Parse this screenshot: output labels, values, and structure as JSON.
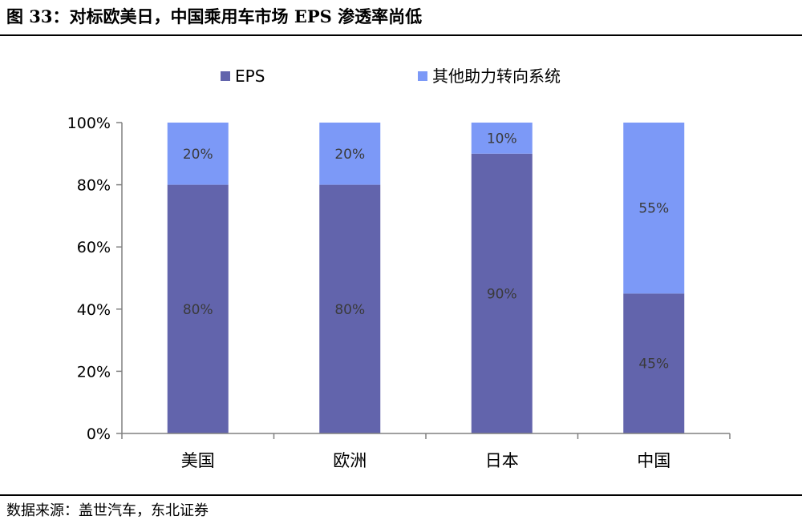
{
  "figure": {
    "title": "图 33：对标欧美日，中国乘用车市场 EPS 渗透率尚低",
    "source": "数据来源：盖世汽车，东北证券"
  },
  "chart_data": {
    "type": "bar",
    "stacked": true,
    "categories": [
      "美国",
      "欧洲",
      "日本",
      "中国"
    ],
    "series": [
      {
        "name": "EPS",
        "values": [
          80,
          80,
          90,
          45
        ],
        "labels": [
          "80%",
          "80%",
          "90%",
          "45%"
        ],
        "color": "#6264ac"
      },
      {
        "name": "其他助力转向系统",
        "values": [
          20,
          20,
          10,
          55
        ],
        "labels": [
          "20%",
          "20%",
          "10%",
          "55%"
        ],
        "color": "#7c99f7"
      }
    ],
    "ylim": [
      0,
      100
    ],
    "yticks": [
      "0%",
      "20%",
      "40%",
      "60%",
      "80%",
      "100%"
    ],
    "grid": false,
    "legend": "top-center",
    "xlabel": "",
    "ylabel": ""
  }
}
